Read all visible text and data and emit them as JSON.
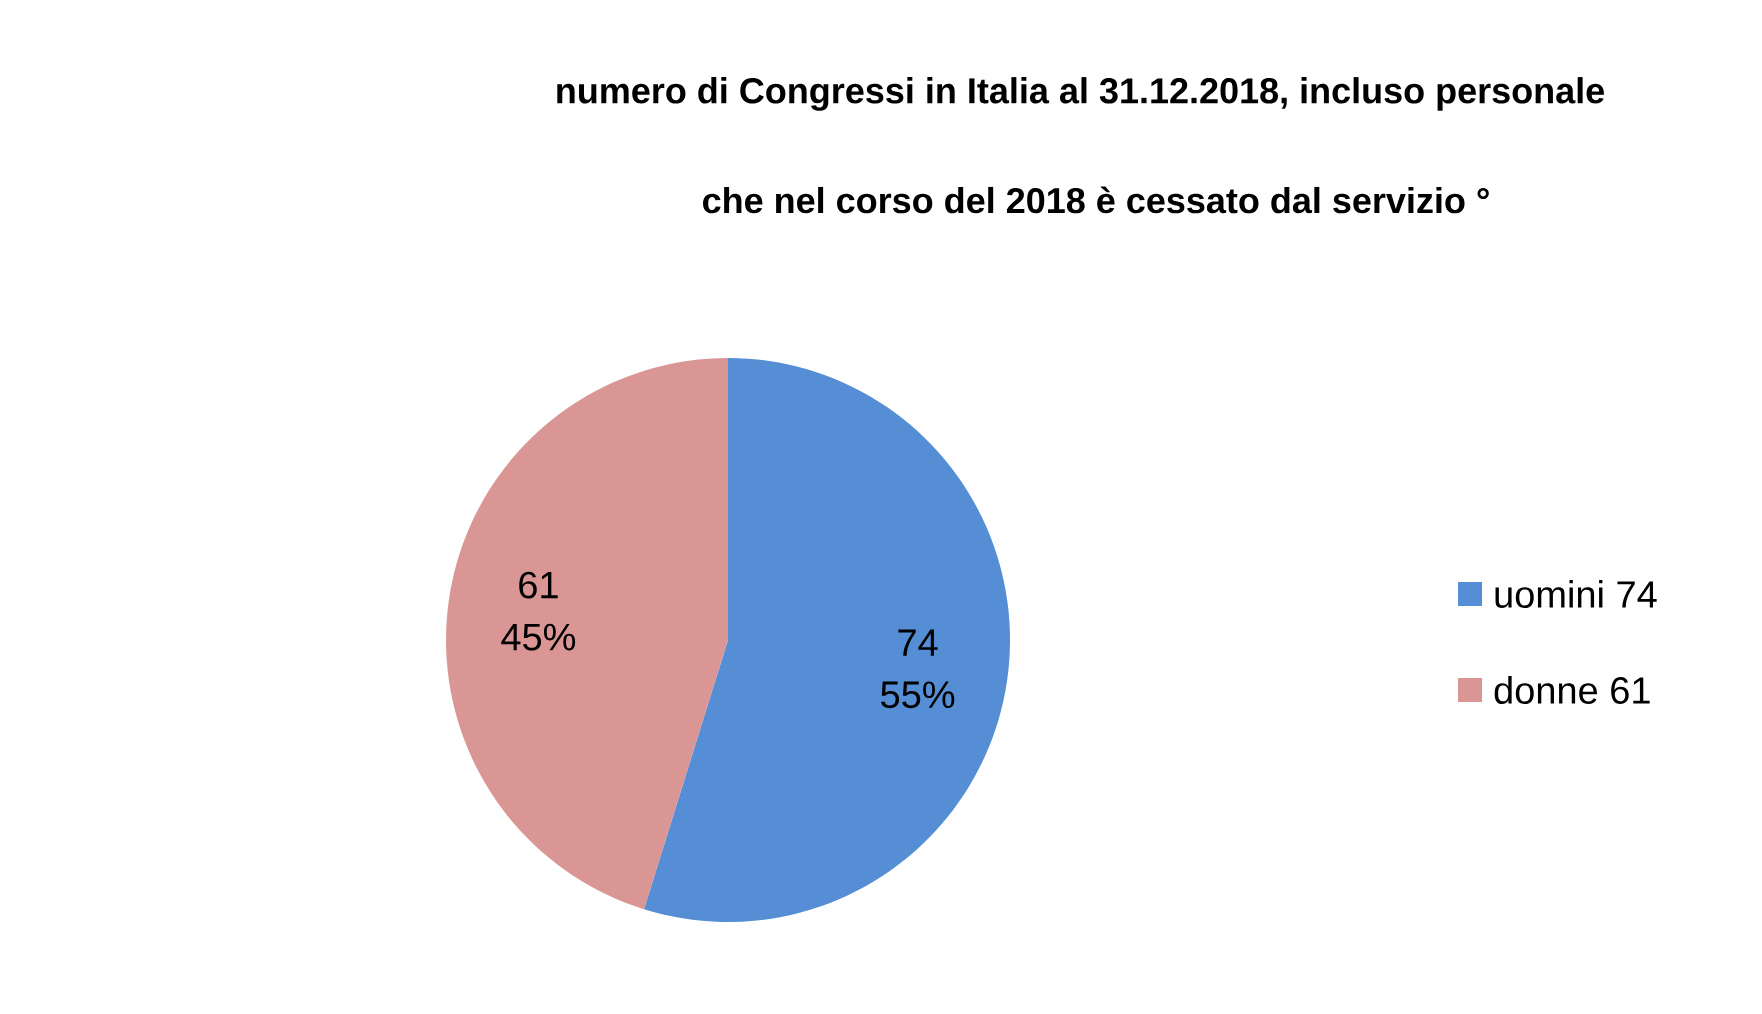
{
  "chart_data": {
    "type": "pie",
    "title": "numero di Congressi in Italia al 31.12.2018, incluso personale",
    "subtitle": "che nel corso del 2018 è cessato dal servizio  °",
    "categories": [
      "uomini 74",
      "donne 61"
    ],
    "values": [
      74,
      61
    ],
    "colors": [
      "#558ed5",
      "#d99694"
    ],
    "value_labels": [
      "74 55%",
      "61 45%"
    ],
    "legend": "right"
  }
}
